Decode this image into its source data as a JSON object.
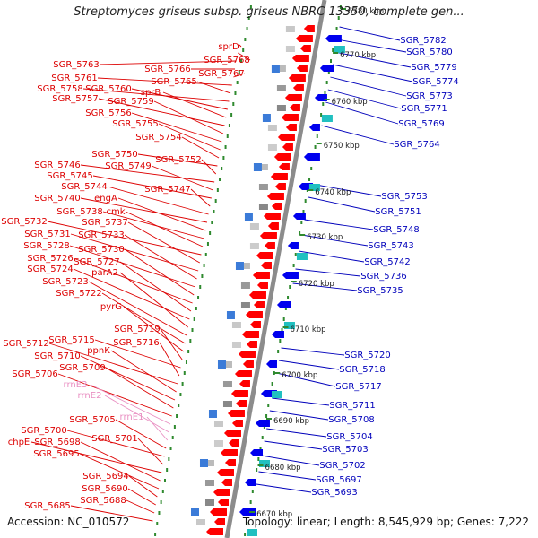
{
  "title": "Streptomyces griseus subsp. griseus NBRC 13350, complete gen...",
  "footer": {
    "accession": "Accession: NC_010572",
    "stats": "Topology: linear; Length: 8,545,929 bp; Genes: 7,222"
  },
  "colors": {
    "left_label": "#dd0000",
    "rna_label": "#e98fc2",
    "right_label": "#0000bb",
    "left_arrow": "#ff0000",
    "right_arrow": "#0000ee",
    "axis_line": "#8c8c8c",
    "tick_mark": "#2f8a2f"
  },
  "left_labels": [
    {
      "text": "sprD",
      "kind": "gene"
    },
    {
      "text": "SGR_5768",
      "kind": "gene"
    },
    {
      "text": "SGR_5763",
      "kind": "gene"
    },
    {
      "text": "SGR_5766",
      "kind": "gene"
    },
    {
      "text": "SGR_5767",
      "kind": "gene"
    },
    {
      "text": "SGR_5761",
      "kind": "gene"
    },
    {
      "text": "SGR_5765",
      "kind": "gene"
    },
    {
      "text": "SGR_5758",
      "kind": "gene"
    },
    {
      "text": "SGR_5760",
      "kind": "gene"
    },
    {
      "text": "sprB",
      "kind": "gene"
    },
    {
      "text": "SGR_5757",
      "kind": "gene"
    },
    {
      "text": "SGR_5759",
      "kind": "gene"
    },
    {
      "text": "SGR_5756",
      "kind": "gene"
    },
    {
      "text": "SGR_5755",
      "kind": "gene"
    },
    {
      "text": "SGR_5754",
      "kind": "gene"
    },
    {
      "text": "SGR_5750",
      "kind": "gene"
    },
    {
      "text": "SGR_5752",
      "kind": "gene"
    },
    {
      "text": "SGR_5746",
      "kind": "gene"
    },
    {
      "text": "SGR_5749",
      "kind": "gene"
    },
    {
      "text": "SGR_5745",
      "kind": "gene"
    },
    {
      "text": "SGR_5747",
      "kind": "gene"
    },
    {
      "text": "SGR_5744",
      "kind": "gene"
    },
    {
      "text": "SGR_5740",
      "kind": "gene"
    },
    {
      "text": "engA",
      "kind": "gene"
    },
    {
      "text": "SGR_5738",
      "kind": "gene"
    },
    {
      "text": "cmk",
      "kind": "gene"
    },
    {
      "text": "SGR_5732",
      "kind": "gene"
    },
    {
      "text": "SGR_5737",
      "kind": "gene"
    },
    {
      "text": "SGR_5731",
      "kind": "gene"
    },
    {
      "text": "SGR_5733",
      "kind": "gene"
    },
    {
      "text": "SGR_5728",
      "kind": "gene"
    },
    {
      "text": "SGR_5730",
      "kind": "gene"
    },
    {
      "text": "SGR_5726",
      "kind": "gene"
    },
    {
      "text": "SGR_5727",
      "kind": "gene"
    },
    {
      "text": "SGR_5724",
      "kind": "gene"
    },
    {
      "text": "parA2",
      "kind": "gene"
    },
    {
      "text": "SGR_5723",
      "kind": "gene"
    },
    {
      "text": "SGR_5722",
      "kind": "gene"
    },
    {
      "text": "pyrG",
      "kind": "gene"
    },
    {
      "text": "SGR_5719",
      "kind": "gene"
    },
    {
      "text": "SGR_5715",
      "kind": "gene"
    },
    {
      "text": "SGR_5716",
      "kind": "gene"
    },
    {
      "text": "SGR_5712",
      "kind": "gene"
    },
    {
      "text": "ppnK",
      "kind": "gene"
    },
    {
      "text": "SGR_5710",
      "kind": "gene"
    },
    {
      "text": "SGR_5709",
      "kind": "gene"
    },
    {
      "text": "SGR_5706",
      "kind": "gene"
    },
    {
      "text": "rrnE3",
      "kind": "rna"
    },
    {
      "text": "rrnE2",
      "kind": "rna"
    },
    {
      "text": "rrnE1",
      "kind": "rna"
    },
    {
      "text": "SGR_5705",
      "kind": "gene"
    },
    {
      "text": "SGR_5700",
      "kind": "gene"
    },
    {
      "text": "SGR_5701",
      "kind": "gene"
    },
    {
      "text": "chpE",
      "kind": "gene"
    },
    {
      "text": "SGR_5698",
      "kind": "gene"
    },
    {
      "text": "SGR_5695",
      "kind": "gene"
    },
    {
      "text": "SGR_5694",
      "kind": "gene"
    },
    {
      "text": "SGR_5690",
      "kind": "gene"
    },
    {
      "text": "SGR_5688",
      "kind": "gene"
    },
    {
      "text": "SGR_5685",
      "kind": "gene"
    }
  ],
  "right_labels": [
    "SGR_5782",
    "SGR_5780",
    "SGR_5779",
    "SGR_5774",
    "SGR_5773",
    "SGR_5771",
    "SGR_5769",
    "SGR_5764",
    "SGR_5753",
    "SGR_5751",
    "SGR_5748",
    "SGR_5743",
    "SGR_5742",
    "SGR_5736",
    "SGR_5735",
    "SGR_5720",
    "SGR_5718",
    "SGR_5717",
    "SGR_5711",
    "SGR_5708",
    "SGR_5704",
    "SGR_5703",
    "SGR_5702",
    "SGR_5697",
    "SGR_5693"
  ],
  "scale_labels": [
    "6780 kbp",
    "6770 kbp",
    "6760 kbp",
    "6750 kbp",
    "6740 kbp",
    "6730 kbp",
    "6720 kbp",
    "6710 kbp",
    "6700 kbp",
    "6690 kbp",
    "6680 kbp",
    "6670 kbp"
  ]
}
